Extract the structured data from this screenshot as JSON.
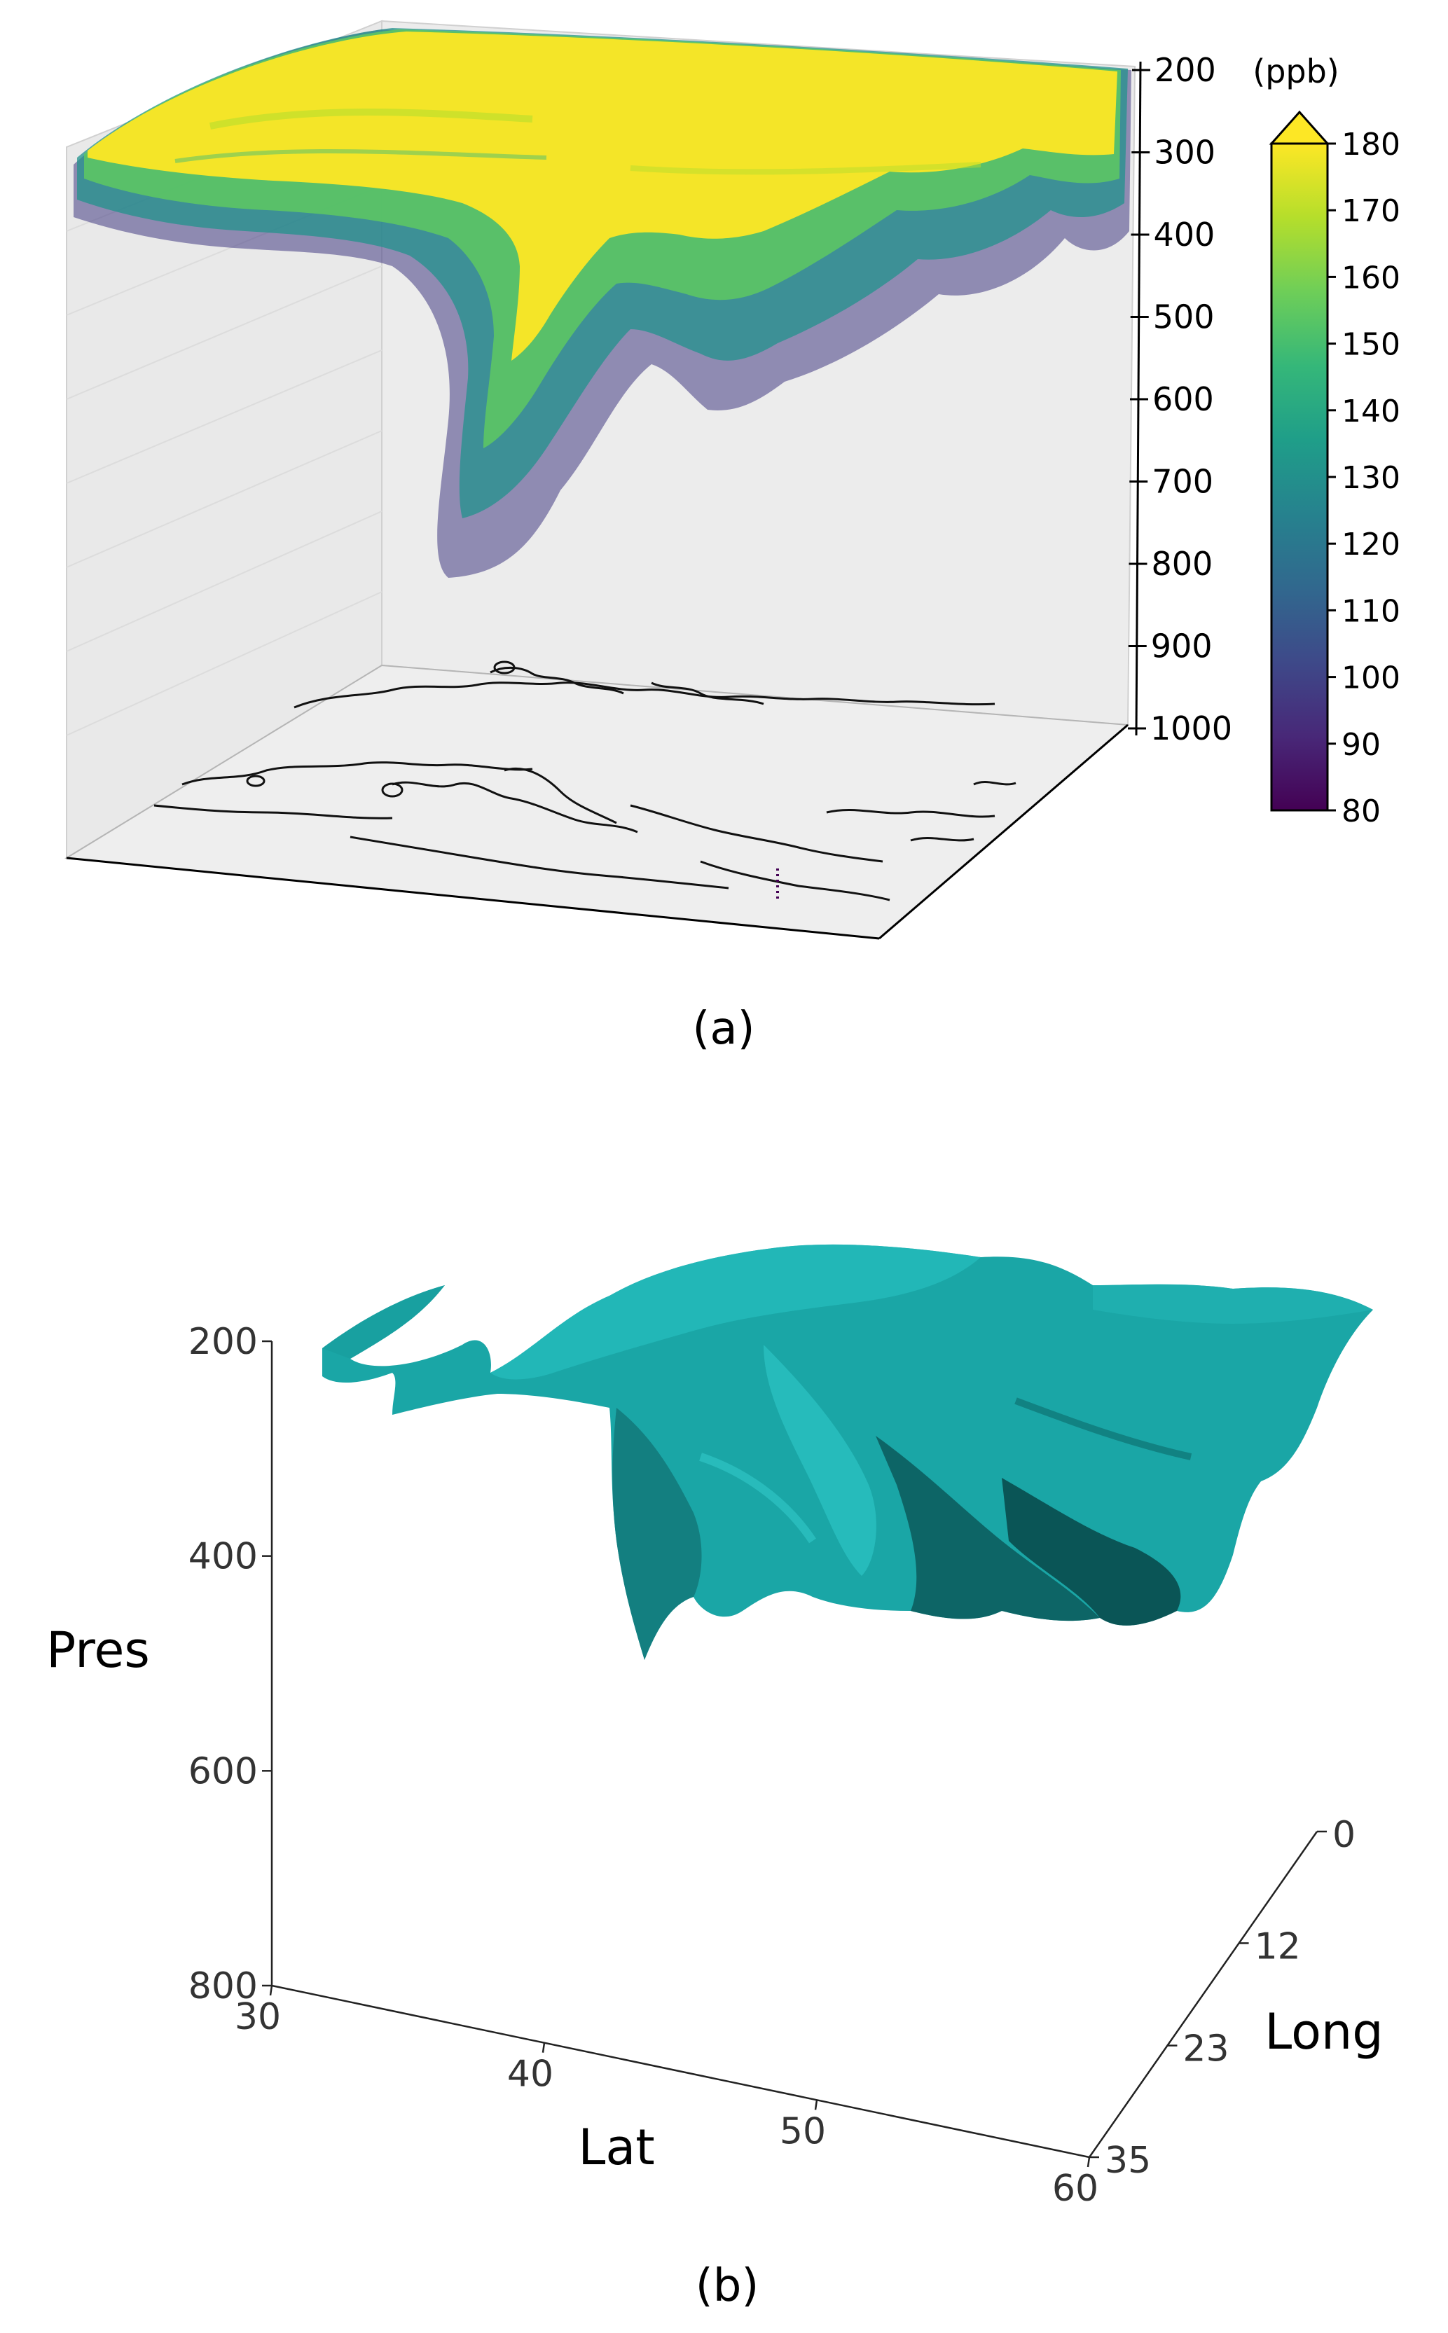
{
  "chart_data": [
    {
      "type": "scatter",
      "panel_label": "(a)",
      "colorbar": {
        "unit_label": "(ppb)",
        "ticks": [
          80,
          90,
          100,
          110,
          120,
          130,
          140,
          150,
          160,
          170,
          180
        ],
        "range": [
          80,
          180
        ],
        "extend": "max",
        "colormap": [
          "#440154",
          "#482878",
          "#3e4989",
          "#31688e",
          "#26828e",
          "#1f9e89",
          "#35b779",
          "#6ece58",
          "#b5de2b",
          "#fde725"
        ]
      },
      "pressure_axis": {
        "ticks": [
          200,
          300,
          400,
          500,
          600,
          700,
          800,
          900,
          1000
        ],
        "range": [
          200,
          1000
        ],
        "inverted": true
      },
      "floor": "coastline map"
    },
    {
      "type": "isosurface",
      "panel_label": "(b)",
      "surface_color": "#1aa6a6",
      "xlabel": "Lat",
      "ylabel": "Long",
      "zlabel": "Pres",
      "x_ticks": [
        30,
        40,
        50,
        60
      ],
      "y_ticks": [
        0,
        12,
        23,
        35
      ],
      "z_ticks": [
        200,
        400,
        600,
        800
      ],
      "xlim": [
        30,
        60
      ],
      "ylim": [
        0,
        35
      ],
      "zlim": [
        200,
        800
      ]
    }
  ]
}
